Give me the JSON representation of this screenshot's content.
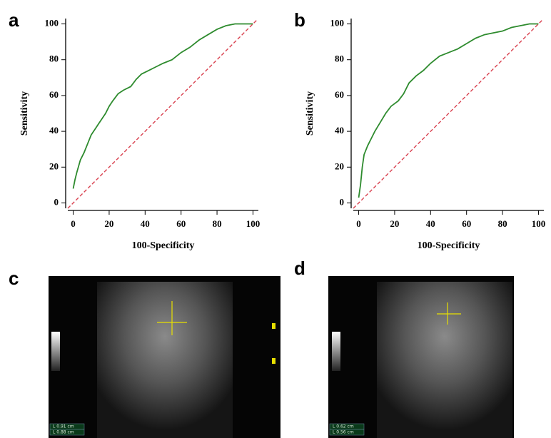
{
  "chart_data": [
    {
      "type": "line",
      "panel_label": "a",
      "x_label": "100-Specificity",
      "y_label": "Sensitivity",
      "xlim": [
        -3,
        103
      ],
      "ylim": [
        -3,
        103
      ],
      "xticks": [
        0,
        20,
        40,
        60,
        80,
        100
      ],
      "yticks": [
        0,
        20,
        40,
        60,
        80,
        100
      ],
      "series": [
        {
          "color": "#2e8b2e",
          "dash": false,
          "x": [
            0,
            1,
            2,
            4,
            6,
            8,
            10,
            12,
            14,
            16,
            18,
            20,
            22,
            25,
            28,
            32,
            35,
            38,
            42,
            46,
            50,
            55,
            60,
            65,
            70,
            75,
            80,
            85,
            90,
            100
          ],
          "values": [
            8,
            13,
            17,
            24,
            28,
            33,
            38,
            41,
            44,
            47,
            50,
            54,
            57,
            61,
            63,
            65,
            69,
            72,
            74,
            76,
            78,
            80,
            84,
            87,
            91,
            94,
            97,
            99,
            100,
            100
          ]
        },
        {
          "color": "#d9414f",
          "dash": true,
          "x": [
            -3,
            102
          ],
          "values": [
            -3,
            102
          ]
        }
      ]
    },
    {
      "type": "line",
      "panel_label": "b",
      "x_label": "100-Specificity",
      "y_label": "Sensitivity",
      "xlim": [
        -3,
        103
      ],
      "ylim": [
        -3,
        103
      ],
      "xticks": [
        0,
        20,
        40,
        60,
        80,
        100
      ],
      "yticks": [
        0,
        20,
        40,
        60,
        80,
        100
      ],
      "series": [
        {
          "color": "#2e8b2e",
          "dash": false,
          "x": [
            0,
            1,
            2,
            3,
            5,
            7,
            9,
            12,
            15,
            18,
            22,
            25,
            28,
            32,
            36,
            40,
            45,
            50,
            55,
            60,
            65,
            70,
            80,
            85,
            90,
            95,
            100
          ],
          "values": [
            3,
            10,
            20,
            27,
            32,
            36,
            40,
            45,
            50,
            54,
            57,
            61,
            67,
            71,
            74,
            78,
            82,
            84,
            86,
            89,
            92,
            94,
            96,
            98,
            99,
            100,
            100
          ]
        },
        {
          "color": "#d9414f",
          "dash": true,
          "x": [
            -3,
            102
          ],
          "values": [
            -3,
            102
          ]
        }
      ]
    }
  ],
  "images": [
    {
      "panel_label": "c",
      "measurements": [
        "L 0.91 cm",
        "L 0.88 cm"
      ]
    },
    {
      "panel_label": "d",
      "measurements": [
        "L 0.62 cm",
        "L 0.56 cm"
      ]
    }
  ]
}
